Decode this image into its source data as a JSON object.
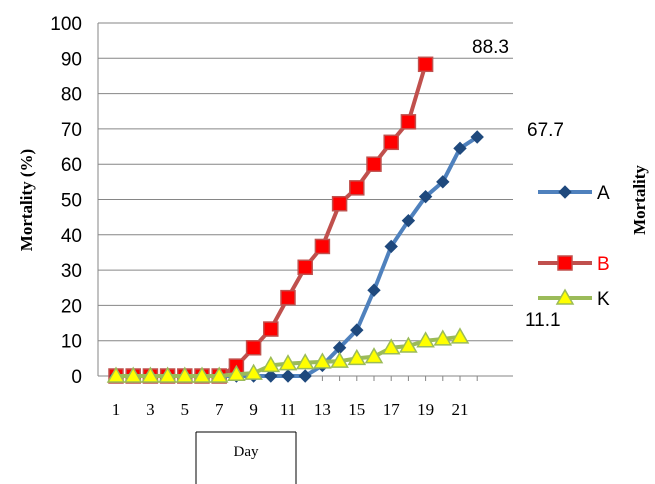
{
  "chart_data": {
    "type": "line",
    "xlabel": "Day",
    "ylabel": "Mortality (%)",
    "ylabel_right": "Mortality",
    "ylim": [
      0,
      100
    ],
    "yticks": [
      "0",
      "10",
      "20",
      "30",
      "40",
      "50",
      "60",
      "70",
      "80",
      "90",
      "100"
    ],
    "xlim": [
      1,
      22
    ],
    "xticks": [
      "1",
      "3",
      "5",
      "7",
      "9",
      "11",
      "13",
      "15",
      "17",
      "19",
      "21"
    ],
    "grid": "horizontal",
    "legend": "right",
    "series": [
      {
        "name": "A",
        "color": "#4f81bd",
        "marker_color": "#1f497d",
        "marker": "diamond",
        "text_color": "#000000",
        "x": [
          1,
          2,
          3,
          4,
          5,
          6,
          7,
          8,
          9,
          10,
          11,
          12,
          13,
          14,
          15,
          16,
          17,
          18,
          19,
          20,
          21,
          22
        ],
        "y": [
          0,
          0,
          0,
          0,
          0,
          0,
          0,
          0,
          0,
          0,
          0,
          0,
          3,
          8,
          13,
          24.3,
          36.7,
          44,
          50.8,
          55,
          64.5,
          67.7
        ],
        "end_label": "67.7"
      },
      {
        "name": "B",
        "color": "#c0504d",
        "marker_color": "#ff0000",
        "marker": "square",
        "text_color": "#ff0000",
        "x": [
          1,
          2,
          3,
          4,
          5,
          6,
          7,
          8,
          9,
          10,
          11,
          12,
          13,
          14,
          15,
          16,
          17,
          18,
          19
        ],
        "y": [
          0,
          0,
          0,
          0,
          0,
          0,
          0,
          2.8,
          8,
          13.3,
          22.2,
          30.8,
          36.7,
          48.8,
          53.3,
          60,
          66.2,
          72,
          88.3
        ],
        "end_label": "88.3"
      },
      {
        "name": "K",
        "color": "#9bbb59",
        "marker_color": "#ffff00",
        "marker": "triangle",
        "text_color": "#000000",
        "x": [
          1,
          2,
          3,
          4,
          5,
          6,
          7,
          8,
          9,
          10,
          11,
          12,
          13,
          14,
          15,
          16,
          17,
          18,
          19,
          20,
          21
        ],
        "y": [
          0,
          0,
          0,
          0,
          0,
          0,
          0,
          0.5,
          0.8,
          3,
          3.5,
          3.8,
          4,
          4.2,
          5,
          5.5,
          8,
          8.5,
          10,
          10.5,
          11.1
        ],
        "end_label": "11.1"
      }
    ]
  }
}
